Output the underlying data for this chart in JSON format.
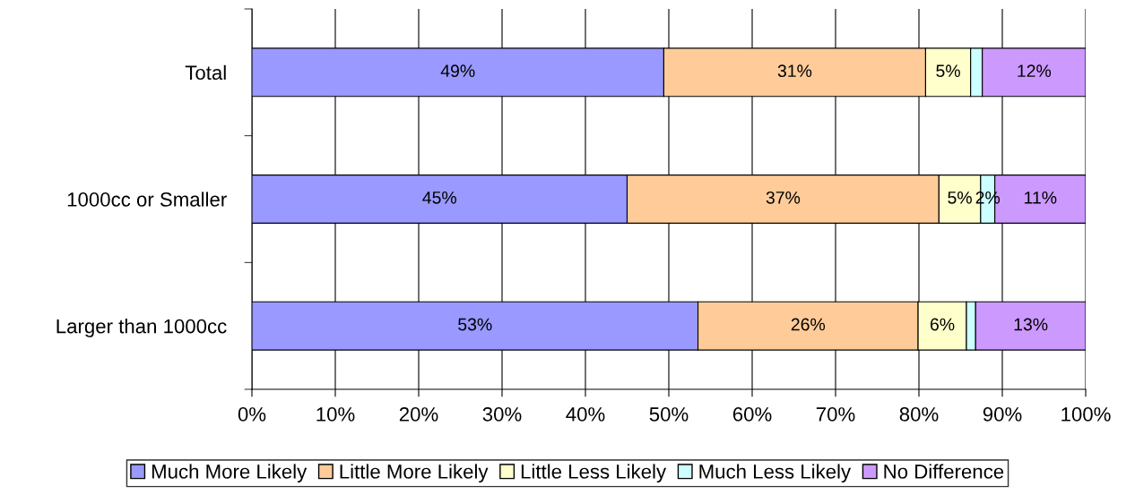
{
  "chart_data": {
    "type": "bar",
    "orientation": "horizontal",
    "stacked": true,
    "categories": [
      "Total",
      "1000cc or Smaller",
      "Larger than 1000cc"
    ],
    "series": [
      {
        "name": "Much More Likely",
        "color": "#9999ff",
        "values": [
          49.4,
          45.0,
          53.5
        ],
        "value_labels": [
          "49%",
          "45%",
          "53%"
        ]
      },
      {
        "name": "Little More Likely",
        "color": "#ffcc99",
        "values": [
          31.4,
          37.4,
          26.4
        ],
        "value_labels": [
          "31%",
          "37%",
          "26%"
        ]
      },
      {
        "name": "Little Less Likely",
        "color": "#ffffcc",
        "values": [
          5.4,
          5.0,
          5.8
        ],
        "value_labels": [
          "5%",
          "5%",
          "6%"
        ]
      },
      {
        "name": "Much Less Likely",
        "color": "#ccffff",
        "values": [
          1.4,
          1.7,
          1.1
        ],
        "value_labels": [
          null,
          "2%",
          null
        ]
      },
      {
        "name": "No Difference",
        "color": "#cc99ff",
        "values": [
          12.4,
          10.9,
          13.2
        ],
        "value_labels": [
          "12%",
          "11%",
          "13%"
        ]
      }
    ],
    "xlim": [
      0,
      100
    ],
    "xticks": [
      {
        "value": 0,
        "label": "0%"
      },
      {
        "value": 10,
        "label": "10%"
      },
      {
        "value": 20,
        "label": "20%"
      },
      {
        "value": 30,
        "label": "30%"
      },
      {
        "value": 40,
        "label": "40%"
      },
      {
        "value": 50,
        "label": "50%"
      },
      {
        "value": 60,
        "label": "60%"
      },
      {
        "value": 70,
        "label": "70%"
      },
      {
        "value": 80,
        "label": "80%"
      },
      {
        "value": 90,
        "label": "90%"
      },
      {
        "value": 100,
        "label": "100%"
      }
    ],
    "grid": "x",
    "legend": "bottom"
  }
}
